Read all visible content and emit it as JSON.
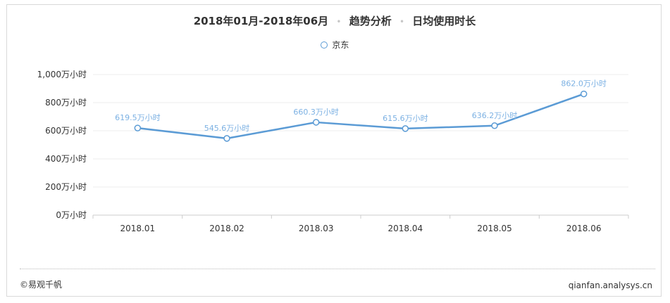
{
  "header": {
    "period": "2018年01月-2018年06月",
    "analysis": "趋势分析",
    "metric": "日均使用时长"
  },
  "footer": {
    "copyright": "©易观千帆",
    "site": "qianfan.analysys.cn"
  },
  "colors": {
    "series": "#5b9bd5",
    "label": "#7cb1e3",
    "grid": "#eeeeee",
    "axis": "#cccccc",
    "text": "#333333"
  },
  "chart_data": {
    "type": "line",
    "title": "2018年01月-2018年06月 · 趋势分析 · 日均使用时长",
    "categories": [
      "2018.01",
      "2018.02",
      "2018.03",
      "2018.04",
      "2018.05",
      "2018.06"
    ],
    "series": [
      {
        "name": "京东",
        "values": [
          619.5,
          545.6,
          660.3,
          615.6,
          636.2,
          862.0
        ],
        "value_labels": [
          "619.5万小时",
          "545.6万小时",
          "660.3万小时",
          "615.6万小时",
          "636.2万小时",
          "862.0万小时"
        ]
      }
    ],
    "ylim": [
      0,
      1000
    ],
    "yticks": [
      0,
      200,
      400,
      600,
      800,
      1000
    ],
    "ytick_labels": [
      "0万小时",
      "200万小时",
      "400万小时",
      "600万小时",
      "800万小时",
      "1,000万小时"
    ],
    "grid": true,
    "legend_position": "top-center"
  }
}
